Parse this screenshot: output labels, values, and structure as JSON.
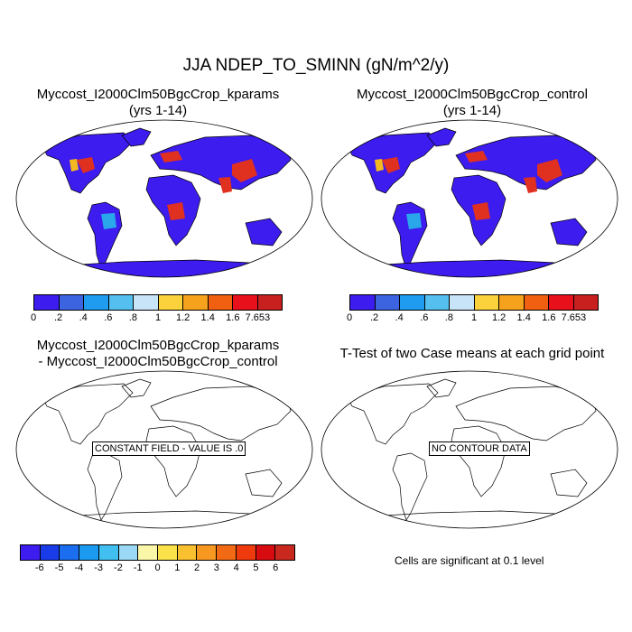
{
  "figure_title": "JJA NDEP_TO_SMINN (gN/m^2/y)",
  "panels": [
    {
      "title_line1": "Myccost_I2000Clm50BgcCrop_kparams",
      "title_line2": "(yrs 1-14)"
    },
    {
      "title_line1": "Myccost_I2000Clm50BgcCrop_control",
      "title_line2": "(yrs 1-14)"
    },
    {
      "title_line1": "Myccost_I2000Clm50BgcCrop_kparams",
      "title_line2": "- Myccost_I2000Clm50BgcCrop_control",
      "note": "CONSTANT FIELD - VALUE IS .0"
    },
    {
      "title_line1": "T-Test of two Case means at each grid point",
      "note": "NO CONTOUR DATA"
    }
  ],
  "colorbar_abs": {
    "labels": [
      "0",
      ".2",
      ".4",
      ".6",
      ".8",
      "1",
      "1.2",
      "1.4",
      "1.6",
      "7.653"
    ],
    "colors": [
      "#3d1cf0",
      "#3c64e0",
      "#1f9bf0",
      "#55c0f0",
      "#c8e4f8",
      "#fbd13c",
      "#f7a21c",
      "#f06010",
      "#e8101a",
      "#c8201e"
    ]
  },
  "colorbar_diff": {
    "labels": [
      "-6",
      "-5",
      "-4",
      "-3",
      "-2",
      "-1",
      "0",
      "1",
      "2",
      "3",
      "4",
      "5",
      "6"
    ],
    "colors": [
      "#3d1cf0",
      "#1a3ce8",
      "#1c6ef0",
      "#1a9af0",
      "#40bff0",
      "#9ad8f6",
      "#fbf7a8",
      "#fbe14a",
      "#f9c030",
      "#f79820",
      "#f36a14",
      "#ee3a0c",
      "#d80c10",
      "#c8281e"
    ]
  },
  "significance_note": "Cells are significant at 0.1 level",
  "chart_data": [
    {
      "type": "heatmap",
      "title": "Myccost_I2000Clm50BgcCrop_kparams (yrs 1-14)",
      "variable": "NDEP_TO_SMINN",
      "season": "JJA",
      "units": "gN/m^2/y",
      "levels": [
        0,
        0.2,
        0.4,
        0.6,
        0.8,
        1,
        1.2,
        1.4,
        1.6
      ],
      "max": 7.653
    },
    {
      "type": "heatmap",
      "title": "Myccost_I2000Clm50BgcCrop_control (yrs 1-14)",
      "variable": "NDEP_TO_SMINN",
      "season": "JJA",
      "units": "gN/m^2/y",
      "levels": [
        0,
        0.2,
        0.4,
        0.6,
        0.8,
        1,
        1.2,
        1.4,
        1.6
      ],
      "max": 7.653
    },
    {
      "type": "heatmap",
      "title": "Myccost_I2000Clm50BgcCrop_kparams - Myccost_I2000Clm50BgcCrop_control",
      "levels": [
        -6,
        -5,
        -4,
        -3,
        -2,
        -1,
        0,
        1,
        2,
        3,
        4,
        5,
        6
      ],
      "constant_value": 0.0
    },
    {
      "type": "heatmap",
      "title": "T-Test of two Case means at each grid point",
      "significance_level": 0.1,
      "contour_data": false
    }
  ]
}
